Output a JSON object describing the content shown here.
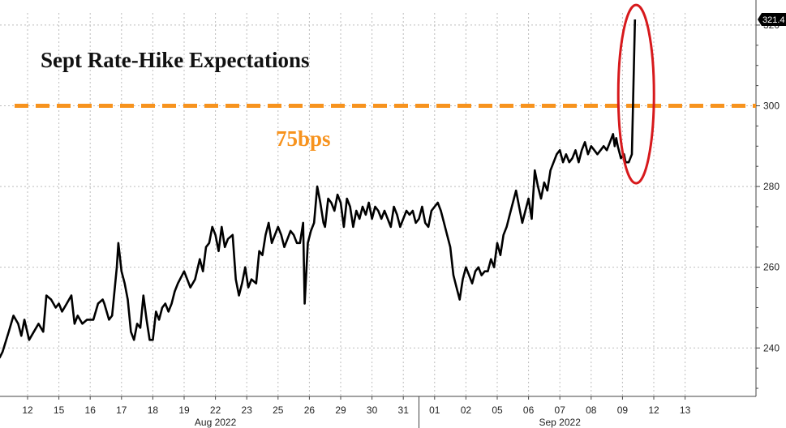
{
  "chart_data": {
    "type": "line",
    "title": "Sept Rate-Hike Expectations",
    "xlabel": "",
    "ylabel": "",
    "ylim": [
      228,
      323
    ],
    "yticks": [
      240,
      260,
      280,
      300,
      320
    ],
    "last_value_label": "321.4",
    "colors": {
      "line": "#000000",
      "reference": "#f7931e",
      "highlight": "#d7191c",
      "grid": "#bdbdbd",
      "last_value_bg": "#000000",
      "last_value_text": "#ffffff"
    },
    "reference_line": {
      "value": 300,
      "label": "75bps"
    },
    "x_day_labels": [
      "12",
      "15",
      "16",
      "17",
      "18",
      "19",
      "22",
      "23",
      "25",
      "26",
      "29",
      "30",
      "31",
      "01",
      "02",
      "05",
      "06",
      "07",
      "08",
      "09",
      "12",
      "13"
    ],
    "month_labels": [
      {
        "label": "Aug 2022",
        "start_index": 0,
        "end_index": 12
      },
      {
        "label": "Sep 2022",
        "start_index": 13,
        "end_index": 21
      }
    ],
    "series": [
      {
        "values": [
          [
            -0.9,
            237.5
          ],
          [
            -0.8,
            239
          ],
          [
            -0.6,
            244
          ],
          [
            -0.45,
            248
          ],
          [
            -0.3,
            246
          ],
          [
            -0.2,
            243
          ],
          [
            -0.1,
            247
          ],
          [
            0.05,
            242
          ],
          [
            0.2,
            244
          ],
          [
            0.35,
            246
          ],
          [
            0.5,
            244
          ],
          [
            0.6,
            253
          ],
          [
            0.75,
            252
          ],
          [
            0.9,
            250
          ],
          [
            1.0,
            251
          ],
          [
            1.1,
            249
          ],
          [
            1.25,
            251
          ],
          [
            1.4,
            253
          ],
          [
            1.5,
            246
          ],
          [
            1.6,
            248
          ],
          [
            1.75,
            246
          ],
          [
            1.9,
            247
          ],
          [
            2.0,
            247
          ],
          [
            2.1,
            247
          ],
          [
            2.25,
            251
          ],
          [
            2.4,
            252
          ],
          [
            2.45,
            251
          ],
          [
            2.6,
            247
          ],
          [
            2.7,
            248
          ],
          [
            2.85,
            260
          ],
          [
            2.9,
            266
          ],
          [
            3.0,
            259
          ],
          [
            3.1,
            256
          ],
          [
            3.2,
            252
          ],
          [
            3.3,
            244
          ],
          [
            3.4,
            242
          ],
          [
            3.5,
            246
          ],
          [
            3.6,
            245
          ],
          [
            3.7,
            253
          ],
          [
            3.8,
            247
          ],
          [
            3.9,
            242
          ],
          [
            4.0,
            242
          ],
          [
            4.1,
            249
          ],
          [
            4.2,
            247
          ],
          [
            4.3,
            250
          ],
          [
            4.4,
            251
          ],
          [
            4.5,
            249
          ],
          [
            4.6,
            251
          ],
          [
            4.7,
            254
          ],
          [
            4.8,
            256
          ],
          [
            5.0,
            259
          ],
          [
            5.2,
            255
          ],
          [
            5.35,
            257
          ],
          [
            5.5,
            262
          ],
          [
            5.6,
            259
          ],
          [
            5.7,
            265
          ],
          [
            5.8,
            266
          ],
          [
            5.9,
            270
          ],
          [
            6.0,
            268
          ],
          [
            6.1,
            264
          ],
          [
            6.2,
            270
          ],
          [
            6.3,
            265
          ],
          [
            6.4,
            267
          ],
          [
            6.55,
            268
          ],
          [
            6.65,
            257
          ],
          [
            6.75,
            253
          ],
          [
            6.85,
            256
          ],
          [
            6.95,
            260
          ],
          [
            7.05,
            255
          ],
          [
            7.15,
            257
          ],
          [
            7.3,
            256
          ],
          [
            7.4,
            264
          ],
          [
            7.5,
            263
          ],
          [
            7.6,
            268
          ],
          [
            7.7,
            271
          ],
          [
            7.8,
            266
          ],
          [
            7.9,
            268
          ],
          [
            8.0,
            270
          ],
          [
            8.1,
            268
          ],
          [
            8.2,
            265
          ],
          [
            8.3,
            267
          ],
          [
            8.4,
            269
          ],
          [
            8.5,
            268
          ],
          [
            8.6,
            266
          ],
          [
            8.7,
            266
          ],
          [
            8.8,
            271
          ],
          [
            8.85,
            251
          ],
          [
            8.95,
            266
          ],
          [
            9.05,
            269
          ],
          [
            9.15,
            271
          ],
          [
            9.25,
            280
          ],
          [
            9.35,
            276
          ],
          [
            9.45,
            271
          ],
          [
            9.5,
            270
          ],
          [
            9.6,
            277
          ],
          [
            9.7,
            276
          ],
          [
            9.8,
            274
          ],
          [
            9.9,
            278
          ],
          [
            10.0,
            276
          ],
          [
            10.1,
            270
          ],
          [
            10.2,
            277
          ],
          [
            10.3,
            275
          ],
          [
            10.4,
            270
          ],
          [
            10.5,
            274
          ],
          [
            10.6,
            272
          ],
          [
            10.7,
            275
          ],
          [
            10.8,
            273
          ],
          [
            10.9,
            276
          ],
          [
            11.0,
            272
          ],
          [
            11.1,
            275
          ],
          [
            11.2,
            274
          ],
          [
            11.3,
            272
          ],
          [
            11.4,
            274
          ],
          [
            11.5,
            272
          ],
          [
            11.6,
            270
          ],
          [
            11.7,
            275
          ],
          [
            11.8,
            273
          ],
          [
            11.9,
            270
          ],
          [
            12.0,
            272
          ],
          [
            12.1,
            274
          ],
          [
            12.2,
            273
          ],
          [
            12.3,
            274
          ],
          [
            12.4,
            271
          ],
          [
            12.5,
            272
          ],
          [
            12.6,
            275
          ],
          [
            12.7,
            271
          ],
          [
            12.8,
            270
          ],
          [
            12.9,
            274
          ],
          [
            13.0,
            275
          ],
          [
            13.1,
            276
          ],
          [
            13.2,
            274
          ],
          [
            13.3,
            271
          ],
          [
            13.4,
            268
          ],
          [
            13.5,
            265
          ],
          [
            13.6,
            258
          ],
          [
            13.7,
            255
          ],
          [
            13.8,
            252
          ],
          [
            13.9,
            257
          ],
          [
            14.0,
            260
          ],
          [
            14.1,
            258
          ],
          [
            14.2,
            256
          ],
          [
            14.3,
            259
          ],
          [
            14.4,
            260
          ],
          [
            14.5,
            258
          ],
          [
            14.6,
            259
          ],
          [
            14.7,
            259
          ],
          [
            14.8,
            262
          ],
          [
            14.9,
            260
          ],
          [
            15.0,
            266
          ],
          [
            15.1,
            263
          ],
          [
            15.2,
            268
          ],
          [
            15.3,
            270
          ],
          [
            15.4,
            273
          ],
          [
            15.5,
            276
          ],
          [
            15.6,
            279
          ],
          [
            15.7,
            275
          ],
          [
            15.8,
            271
          ],
          [
            15.9,
            274
          ],
          [
            16.0,
            277
          ],
          [
            16.1,
            272
          ],
          [
            16.2,
            284
          ],
          [
            16.3,
            280
          ],
          [
            16.4,
            277
          ],
          [
            16.5,
            281
          ],
          [
            16.6,
            279
          ],
          [
            16.7,
            284
          ],
          [
            16.8,
            286
          ],
          [
            16.9,
            288
          ],
          [
            17.0,
            289
          ],
          [
            17.1,
            286
          ],
          [
            17.2,
            288
          ],
          [
            17.3,
            286
          ],
          [
            17.4,
            287
          ],
          [
            17.5,
            289
          ],
          [
            17.6,
            286
          ],
          [
            17.7,
            289
          ],
          [
            17.8,
            291
          ],
          [
            17.9,
            288
          ],
          [
            18.0,
            290
          ],
          [
            18.1,
            289
          ],
          [
            18.2,
            288
          ],
          [
            18.3,
            289
          ],
          [
            18.4,
            290
          ],
          [
            18.5,
            289
          ],
          [
            18.6,
            291
          ],
          [
            18.7,
            293
          ],
          [
            18.75,
            290
          ],
          [
            18.8,
            292
          ],
          [
            18.85,
            290
          ],
          [
            18.95,
            287
          ],
          [
            19.05,
            288
          ],
          [
            19.1,
            286
          ],
          [
            19.2,
            286
          ],
          [
            19.25,
            287
          ],
          [
            19.3,
            288
          ],
          [
            19.4,
            321.4
          ]
        ]
      }
    ]
  }
}
